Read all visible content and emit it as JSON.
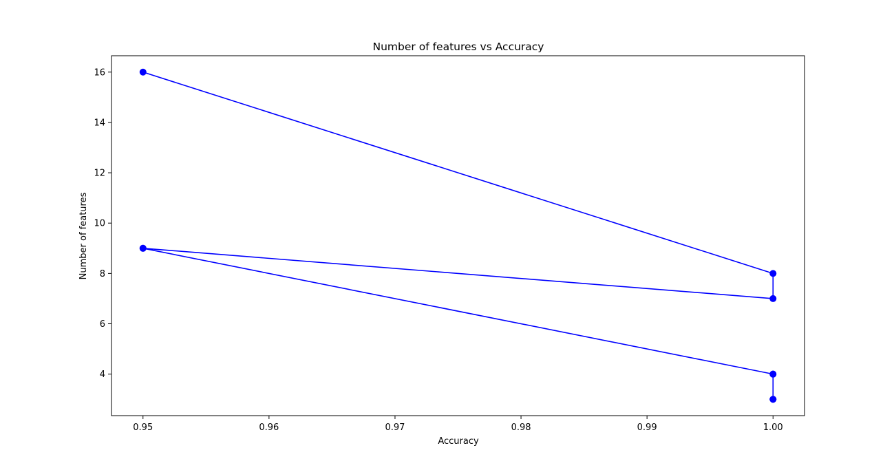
{
  "chart_data": {
    "type": "line",
    "title": "Number of features vs Accuracy",
    "xlabel": "Accuracy",
    "ylabel": "Number of features",
    "xlim": [
      0.9475,
      1.0025
    ],
    "ylim": [
      2.35,
      16.65
    ],
    "xticks": [
      0.95,
      0.96,
      0.97,
      0.98,
      0.99,
      1.0
    ],
    "xtick_labels": [
      "0.95",
      "0.96",
      "0.97",
      "0.98",
      "0.99",
      "1.00"
    ],
    "yticks": [
      4,
      6,
      8,
      10,
      12,
      14,
      16
    ],
    "ytick_labels": [
      "4",
      "6",
      "8",
      "10",
      "12",
      "14",
      "16"
    ],
    "grid": false,
    "legend": null,
    "series": [
      {
        "color": "#0000ff",
        "marker": "circle",
        "x": [
          0.95,
          1.0,
          1.0,
          0.95,
          0.95,
          1.0,
          1.0,
          1.0,
          1.0
        ],
        "y": [
          16,
          8,
          7,
          9,
          9,
          4,
          4,
          3,
          3
        ]
      }
    ]
  }
}
